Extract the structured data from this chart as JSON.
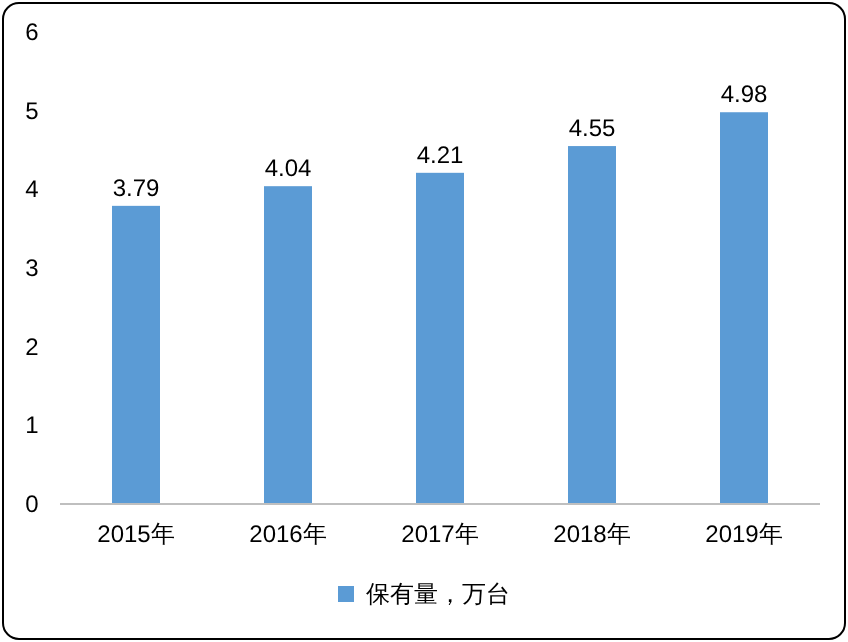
{
  "chart_data": {
    "type": "bar",
    "categories": [
      "2015年",
      "2016年",
      "2017年",
      "2018年",
      "2019年"
    ],
    "series": [
      {
        "name": "保有量，万台",
        "color": "#5b9bd5",
        "values": [
          3.79,
          4.04,
          4.21,
          4.55,
          4.98
        ]
      }
    ],
    "ylim": [
      0,
      6
    ],
    "yticks": [
      0,
      1,
      2,
      3,
      4,
      5,
      6
    ],
    "data_labels": true,
    "legend": "bottom",
    "grid": false
  }
}
